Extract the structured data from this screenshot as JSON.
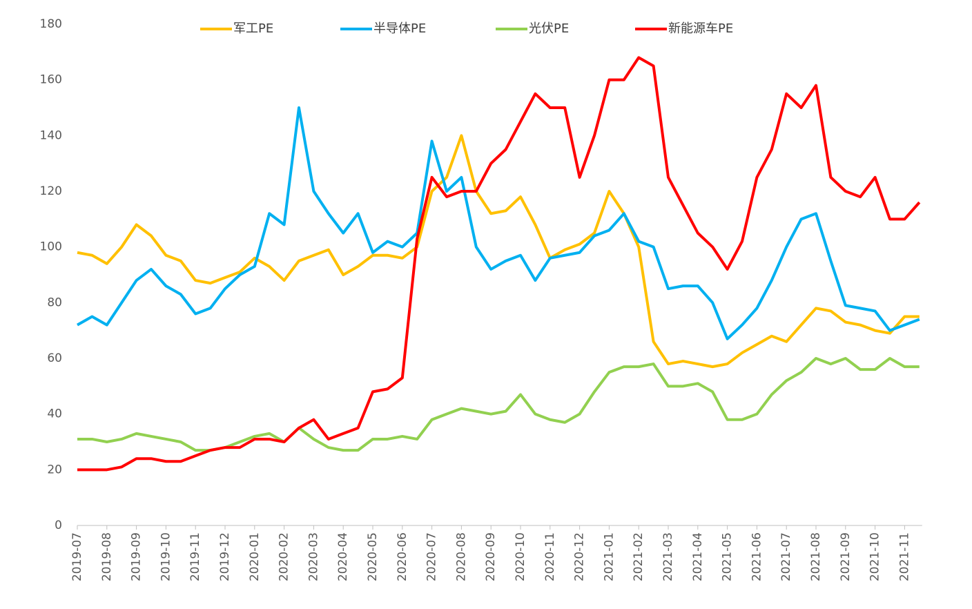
{
  "chart_data": {
    "type": "line",
    "categories": [
      "2019-07",
      null,
      "2019-08",
      null,
      "2019-09",
      null,
      "2019-10",
      null,
      "2019-11",
      null,
      "2019-12",
      null,
      "2020-01",
      null,
      "2020-02",
      null,
      "2020-03",
      null,
      "2020-04",
      null,
      "2020-05",
      null,
      "2020-06",
      null,
      "2020-07",
      null,
      "2020-08",
      null,
      "2020-09",
      null,
      "2020-10",
      null,
      "2020-11",
      null,
      "2020-12",
      null,
      "2021-01",
      null,
      "2021-02",
      null,
      "2021-03",
      null,
      "2021-04",
      null,
      "2021-05",
      null,
      "2021-06",
      null,
      "2021-07",
      null,
      "2021-08",
      null,
      "2021-09",
      null,
      "2021-10",
      null,
      "2021-11",
      null
    ],
    "series": [
      {
        "name": "军工PE",
        "color": "#ffc000",
        "values": [
          98,
          97,
          94,
          100,
          108,
          104,
          97,
          95,
          88,
          87,
          89,
          91,
          96,
          93,
          88,
          95,
          97,
          99,
          90,
          93,
          97,
          97,
          96,
          100,
          120,
          125,
          140,
          120,
          112,
          113,
          118,
          108,
          96,
          99,
          101,
          105,
          120,
          112,
          100,
          66,
          58,
          59,
          58,
          57,
          58,
          62,
          65,
          68,
          66,
          72,
          78,
          77,
          73,
          72,
          70,
          69,
          75,
          75
        ]
      },
      {
        "name": "半导体PE",
        "color": "#00b0f0",
        "values": [
          72,
          75,
          72,
          80,
          88,
          92,
          86,
          83,
          76,
          78,
          85,
          90,
          93,
          112,
          108,
          150,
          120,
          112,
          105,
          112,
          98,
          102,
          100,
          105,
          138,
          120,
          125,
          100,
          92,
          95,
          97,
          88,
          96,
          97,
          98,
          104,
          106,
          112,
          102,
          100,
          85,
          86,
          86,
          80,
          67,
          72,
          78,
          88,
          100,
          110,
          112,
          95,
          79,
          78,
          77,
          70,
          72,
          74
        ]
      },
      {
        "name": "光伏PE",
        "color": "#92d050",
        "values": [
          31,
          31,
          30,
          31,
          33,
          32,
          31,
          30,
          27,
          27,
          28,
          30,
          32,
          33,
          30,
          35,
          31,
          28,
          27,
          27,
          31,
          31,
          32,
          31,
          38,
          40,
          42,
          41,
          40,
          41,
          47,
          40,
          38,
          37,
          40,
          48,
          55,
          57,
          57,
          58,
          50,
          50,
          51,
          48,
          38,
          38,
          40,
          47,
          52,
          55,
          60,
          58,
          60,
          56,
          56,
          60,
          57,
          57
        ]
      },
      {
        "name": "新能源车PE",
        "color": "#ff0000",
        "values": [
          20,
          20,
          20,
          21,
          24,
          24,
          23,
          23,
          25,
          27,
          28,
          28,
          31,
          31,
          30,
          35,
          38,
          31,
          33,
          35,
          48,
          49,
          53,
          103,
          125,
          118,
          120,
          120,
          130,
          135,
          145,
          155,
          150,
          150,
          125,
          140,
          160,
          160,
          168,
          165,
          125,
          115,
          105,
          100,
          92,
          102,
          125,
          135,
          155,
          150,
          158,
          125,
          120,
          118,
          125,
          110,
          110,
          116
        ]
      }
    ],
    "ylim": [
      0,
      180
    ],
    "yticks": [
      0,
      20,
      40,
      60,
      80,
      100,
      120,
      140,
      160,
      180
    ]
  }
}
